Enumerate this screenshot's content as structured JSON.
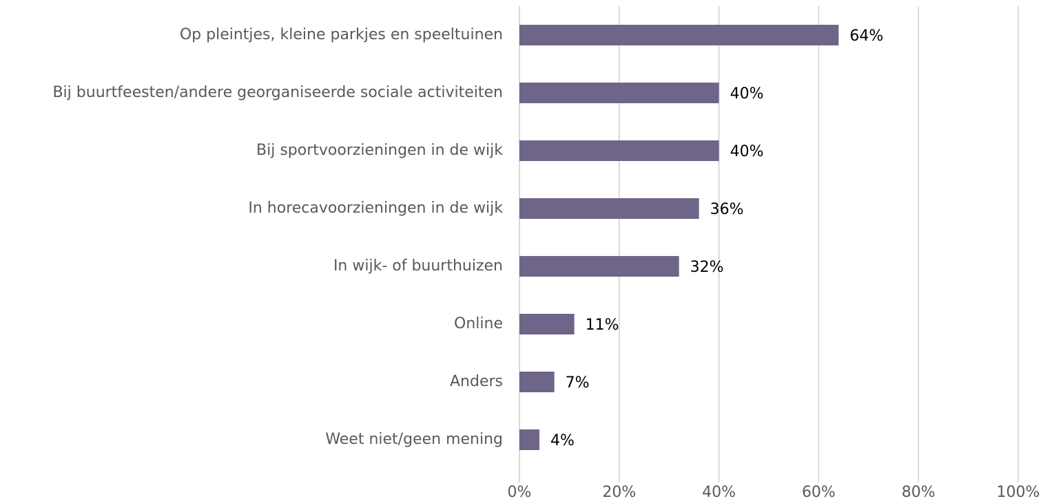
{
  "chart_data": {
    "type": "bar",
    "orientation": "horizontal",
    "categories": [
      "Op pleintjes, kleine parkjes en speeltuinen",
      "Bij buurtfeesten/andere georganiseerde sociale activiteiten",
      "Bij sportvoorzieningen in de wijk",
      "In horecavoorzieningen in de wijk",
      "In wijk- of buurthuizen",
      "Online",
      "Anders",
      "Weet niet/geen mening"
    ],
    "values": [
      64,
      40,
      40,
      36,
      32,
      11,
      7,
      4
    ],
    "value_labels": [
      "64%",
      "40%",
      "40%",
      "36%",
      "32%",
      "11%",
      "7%",
      "4%"
    ],
    "color": "#6e6589",
    "xlim": [
      0,
      100
    ],
    "xticks": [
      {
        "value": 0,
        "label": "0%"
      },
      {
        "value": 20,
        "label": "20%"
      },
      {
        "value": 40,
        "label": "40%"
      },
      {
        "value": 60,
        "label": "60%"
      },
      {
        "value": 80,
        "label": "80%"
      },
      {
        "value": 100,
        "label": "100%"
      }
    ],
    "grid": true
  }
}
